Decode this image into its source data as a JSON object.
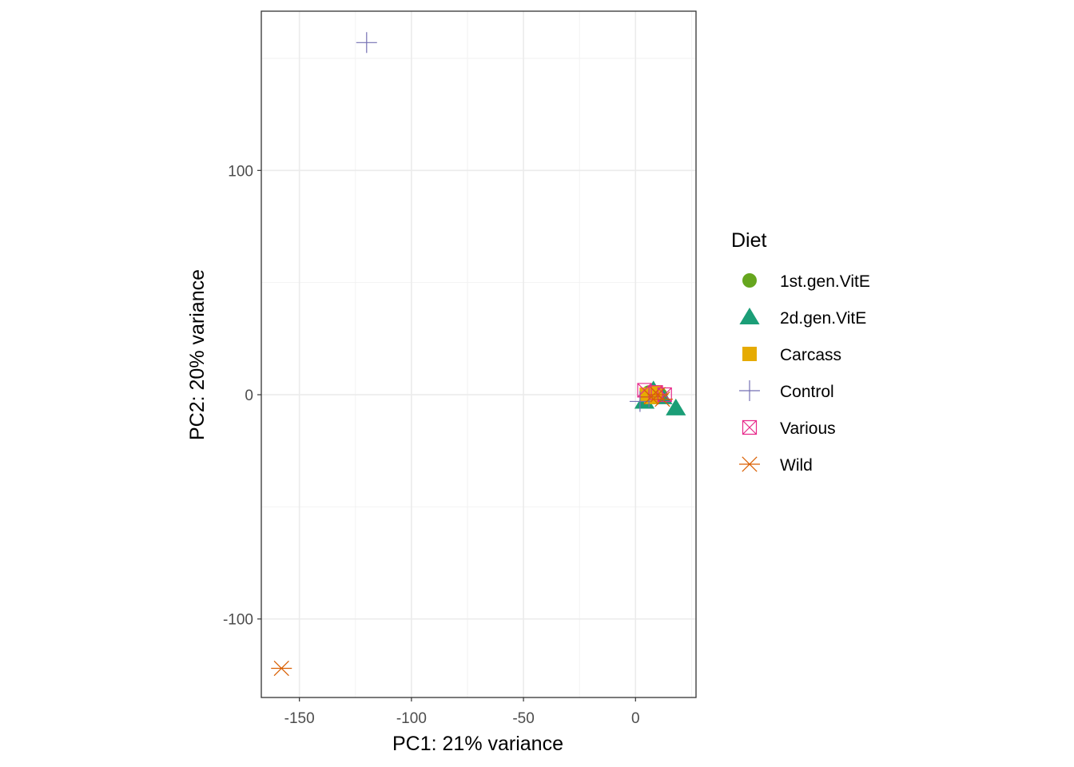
{
  "chart_data": {
    "type": "scatter",
    "title": "",
    "xlabel": "PC1: 21% variance",
    "ylabel": "PC2: 20% variance",
    "xlim": [
      -167,
      27
    ],
    "ylim": [
      -135,
      171
    ],
    "x_ticks": [
      -150,
      -100,
      -50,
      0
    ],
    "y_ticks": [
      -100,
      0,
      100
    ],
    "grid": true,
    "legend": {
      "title": "Diet",
      "position": "right"
    },
    "series": [
      {
        "name": "1st.gen.VitE",
        "marker": "circle",
        "color": "#66A61E",
        "points": [
          {
            "x": 6,
            "y": 1
          },
          {
            "x": 9,
            "y": -1
          },
          {
            "x": 11,
            "y": 0
          }
        ]
      },
      {
        "name": "2d.gen.VitE",
        "marker": "triangle",
        "color": "#1B9E77",
        "points": [
          {
            "x": 4,
            "y": -3
          },
          {
            "x": 8,
            "y": 2
          },
          {
            "x": 10,
            "y": 0
          },
          {
            "x": 12,
            "y": -1
          },
          {
            "x": 18,
            "y": -6
          }
        ]
      },
      {
        "name": "Carcass",
        "marker": "square",
        "color": "#E6AB02",
        "points": [
          {
            "x": 5,
            "y": 0
          },
          {
            "x": 7,
            "y": -1
          },
          {
            "x": 9,
            "y": 1
          }
        ]
      },
      {
        "name": "Control",
        "marker": "plus",
        "color": "#7570B3",
        "points": [
          {
            "x": -120,
            "y": 157
          },
          {
            "x": 2,
            "y": -3
          },
          {
            "x": 6,
            "y": -1
          }
        ]
      },
      {
        "name": "Various",
        "marker": "square-x",
        "color": "#E7298A",
        "points": [
          {
            "x": 4,
            "y": 2
          },
          {
            "x": 9,
            "y": 1
          },
          {
            "x": 13,
            "y": 0
          }
        ]
      },
      {
        "name": "Wild",
        "marker": "asterisk",
        "color": "#D95F02",
        "points": [
          {
            "x": -158,
            "y": -122
          },
          {
            "x": 7,
            "y": -1
          },
          {
            "x": 10,
            "y": 0
          },
          {
            "x": 12,
            "y": -2
          }
        ]
      }
    ]
  }
}
